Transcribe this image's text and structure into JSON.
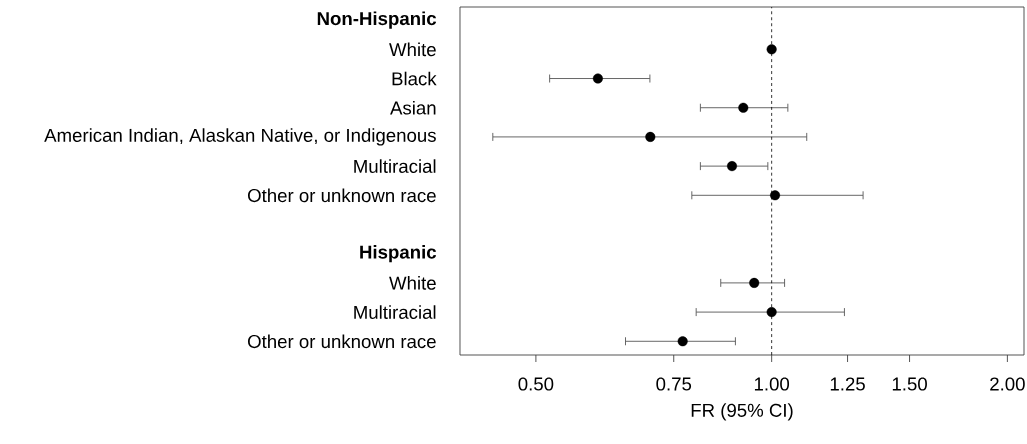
{
  "chart_data": {
    "type": "scatter",
    "orientation": "horizontal",
    "log": "x",
    "marker": "circle",
    "xlabel": "FR (95% CI)",
    "categories": [
      "Non-Hispanic",
      "White",
      "Black",
      "Asian",
      "American Indian, Alaskan Native, or Indigenous",
      "Multiracial",
      "Other or unknown race",
      null,
      "Hispanic",
      "White",
      "Multiracial",
      "Other or unknown race"
    ],
    "values": [
      null,
      1.0,
      0.6,
      0.92,
      0.7,
      0.89,
      1.01,
      null,
      null,
      0.95,
      1.0,
      0.77
    ],
    "errors": [
      null,
      null,
      [
        0.52,
        0.7
      ],
      [
        0.81,
        1.05
      ],
      [
        0.44,
        1.11
      ],
      [
        0.81,
        0.99
      ],
      [
        0.79,
        1.31
      ],
      null,
      null,
      [
        0.86,
        1.04
      ],
      [
        0.8,
        1.24
      ],
      [
        0.65,
        0.9
      ]
    ],
    "color": "#000000",
    "xlim": [
      0.4,
      2.1
    ],
    "xticks": [
      {
        "value": 0.5,
        "label": "0.50"
      },
      {
        "value": 0.75,
        "label": "0.75"
      },
      {
        "value": 1,
        "label": "1.00"
      },
      1.25,
      {
        "value": 1.5,
        "label": "1.50"
      },
      {
        "value": 2,
        "label": "2.00"
      }
    ],
    "ref_lines": [
      {
        "axis": "x",
        "value": 1,
        "line_style": "dashed"
      }
    ]
  }
}
